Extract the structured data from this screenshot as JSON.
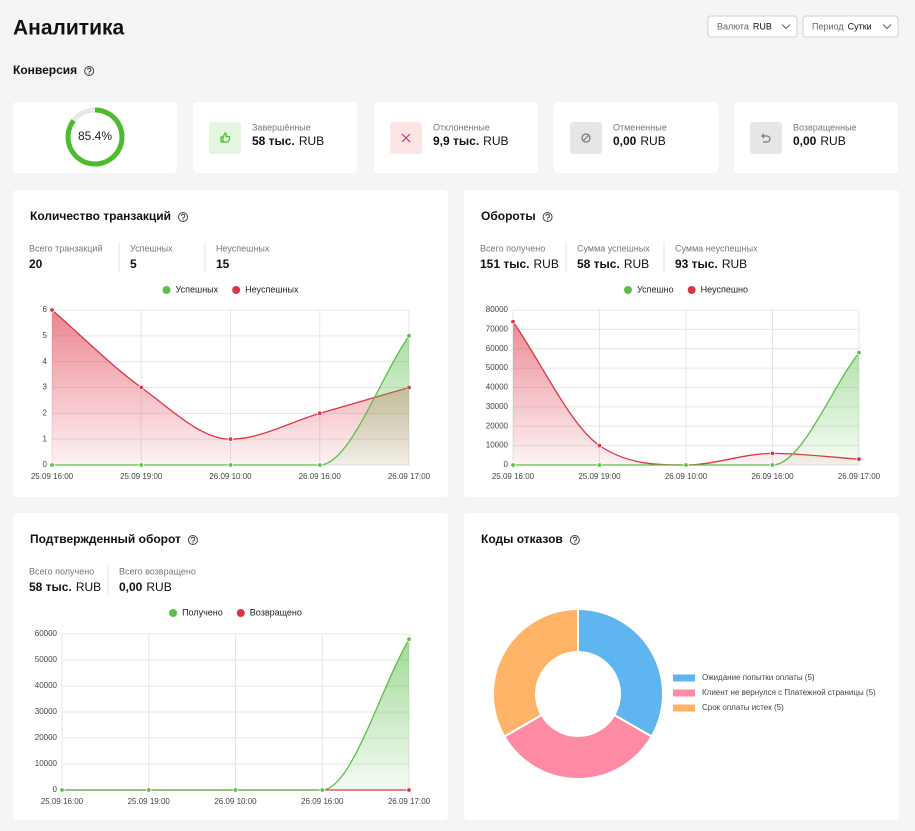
{
  "header": {
    "title": "Аналитика",
    "filters": [
      {
        "label": "Валюта",
        "value": "RUB"
      },
      {
        "label": "Период",
        "value": "Сутки"
      }
    ]
  },
  "conversion": {
    "title": "Конверсия",
    "rate": 85.4,
    "rate_label": "85.4%",
    "cards": [
      {
        "label": "Завершённые",
        "amount": "58 тыс.",
        "currency": "RUB"
      },
      {
        "label": "Отклоненные",
        "amount": "9,9 тыс.",
        "currency": "RUB"
      },
      {
        "label": "Отмененные",
        "amount": "0,00",
        "currency": "RUB"
      },
      {
        "label": "Возвращенные",
        "amount": "0,00",
        "currency": "RUB"
      }
    ]
  },
  "chart_data": [
    {
      "type": "line",
      "title": "Количество транзакций",
      "stats": [
        {
          "label": "Всего транзакций",
          "value": 20
        },
        {
          "label": "Успешных",
          "value": 5
        },
        {
          "label": "Неуспешных",
          "value": 15
        }
      ],
      "categories": [
        "25.09 16:00",
        "25.09 19:00",
        "26.09 10:00",
        "26.09 16:00",
        "26.09 17:00"
      ],
      "series": [
        {
          "name": "Успешных",
          "color": "#5bbf4a",
          "values": [
            0,
            0,
            0,
            0,
            5
          ]
        },
        {
          "name": "Неуспешных",
          "color": "#dc3545",
          "values": [
            6,
            3,
            1,
            2,
            3
          ]
        }
      ],
      "ylim": [
        0,
        6
      ],
      "yticks": [
        0,
        1,
        2,
        3,
        4,
        5,
        6
      ],
      "grid": true
    },
    {
      "type": "line",
      "title": "Обороты",
      "stats": [
        {
          "label": "Всего получено",
          "value": "151 тыс.",
          "unit": "RUB"
        },
        {
          "label": "Сумма успешных",
          "value": "58 тыс.",
          "unit": "RUB"
        },
        {
          "label": "Сумма неуспешных",
          "value": "93 тыс.",
          "unit": "RUB"
        }
      ],
      "categories": [
        "25.09 16:00",
        "25.09 19:00",
        "26.09 10:00",
        "26.09 16:00",
        "26.09 17:00"
      ],
      "series": [
        {
          "name": "Успешно",
          "color": "#5bbf4a",
          "values": [
            0,
            0,
            0,
            0,
            58000
          ]
        },
        {
          "name": "Неуспешно",
          "color": "#dc3545",
          "values": [
            74000,
            10000,
            0,
            6000,
            3000
          ]
        }
      ],
      "ylim": [
        0,
        80000
      ],
      "yticks": [
        0,
        10000,
        20000,
        30000,
        40000,
        50000,
        60000,
        70000,
        80000
      ],
      "grid": true
    },
    {
      "type": "line",
      "title": "Подтвержденный оборот",
      "stats": [
        {
          "label": "Всего получено",
          "value": "58 тыс.",
          "unit": "RUB"
        },
        {
          "label": "Всего возвращено",
          "value": "0,00",
          "unit": "RUB"
        }
      ],
      "categories": [
        "25.09 16:00",
        "25.09 19:00",
        "26.09 10:00",
        "26.09 16:00",
        "26.09 17:00"
      ],
      "series": [
        {
          "name": "Получено",
          "color": "#5bbf4a",
          "values": [
            0,
            0,
            0,
            0,
            58000
          ]
        },
        {
          "name": "Возвращено",
          "color": "#dc3545",
          "values": [
            0,
            0,
            0,
            0,
            0
          ]
        }
      ],
      "ylim": [
        0,
        60000
      ],
      "yticks": [
        0,
        10000,
        20000,
        30000,
        40000,
        50000,
        60000
      ],
      "grid": true
    },
    {
      "type": "pie",
      "title": "Коды отказов",
      "donut": true,
      "categories": [
        "Ожидание попытки оплаты (5)",
        "Клиент не вернулся с Платежной страницы (5)",
        "Срок оплаты истек (5)"
      ],
      "values": [
        5,
        5,
        5
      ],
      "colors": [
        "#5eb5ef",
        "#ff8aa3",
        "#ffb366"
      ]
    }
  ]
}
